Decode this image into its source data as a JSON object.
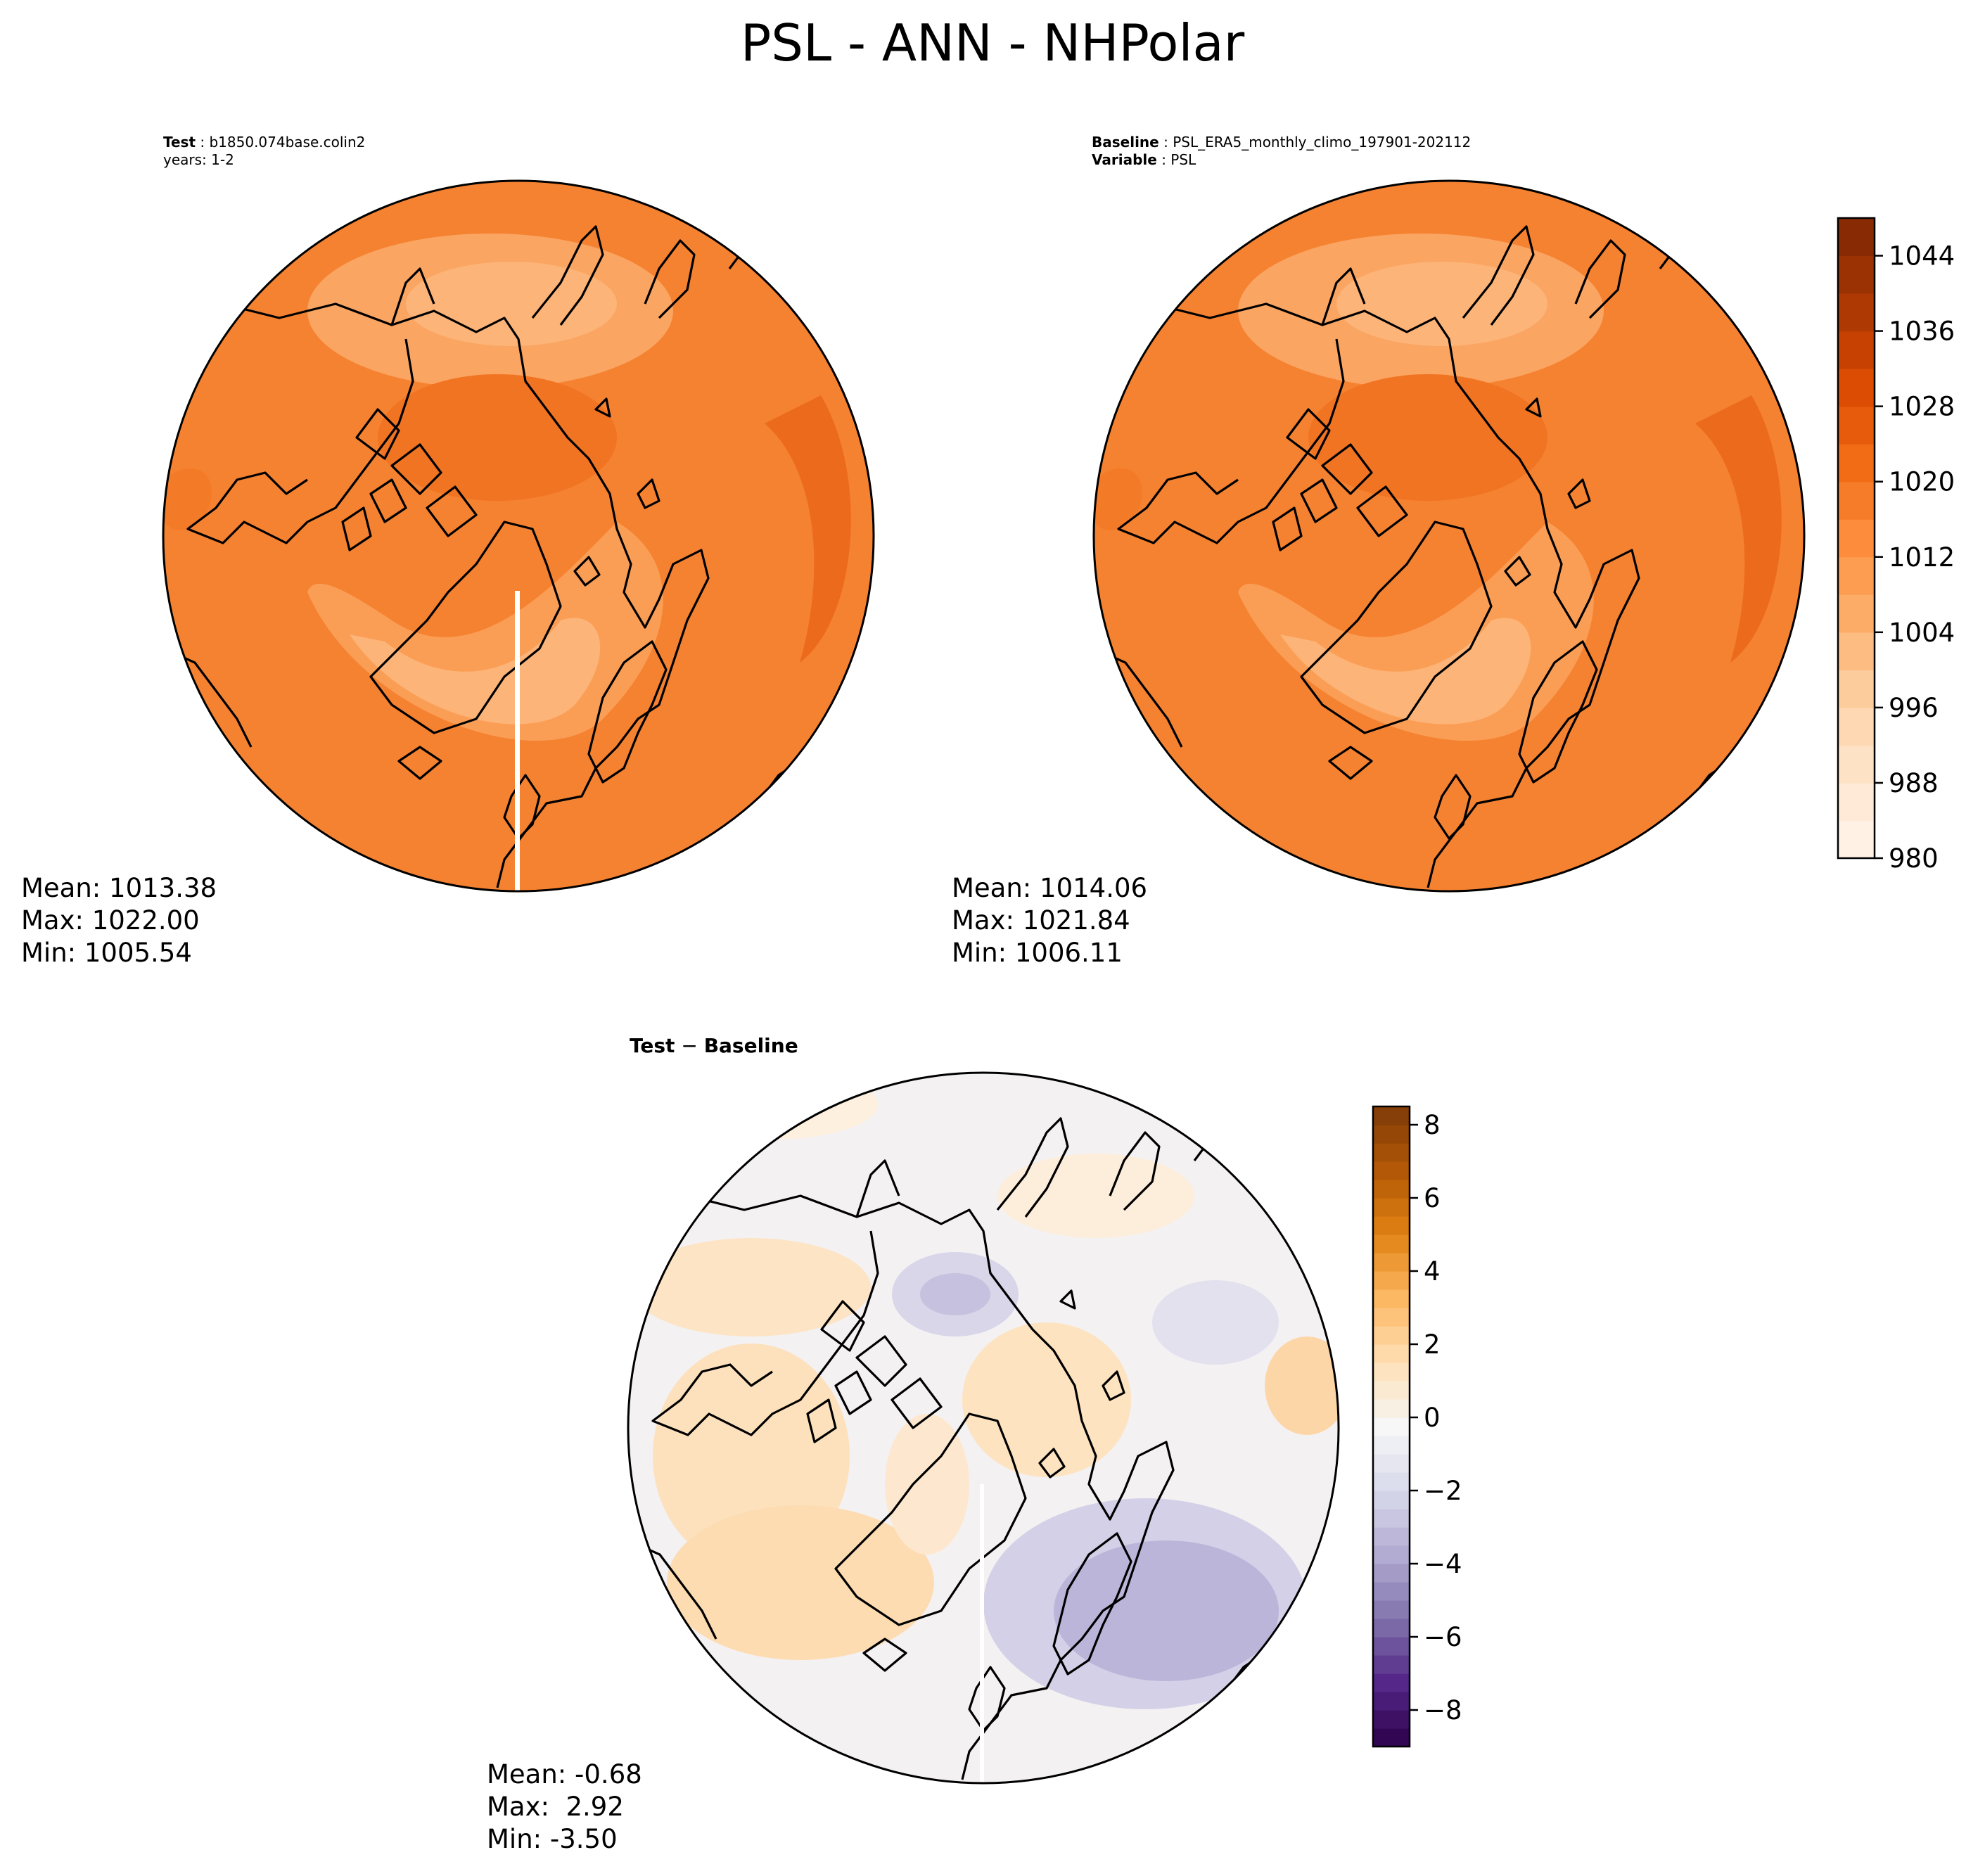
{
  "figure": {
    "title": "PSL - ANN - NHPolar"
  },
  "panels": {
    "test": {
      "label": "Test",
      "case": "b1850.074base.colin2",
      "years_line": "years: 1-2",
      "mean": "Mean: 1013.38",
      "max": "Max: 1022.00",
      "min": "Min: 1005.54"
    },
    "baseline": {
      "label": "Baseline",
      "case": "PSL_ERA5_monthly_climo_197901-202112",
      "var_label": "Variable",
      "var_value": "PSL",
      "mean": "Mean: 1014.06",
      "max": "Max: 1021.84",
      "min": "Min: 1006.11"
    },
    "diff": {
      "title_a": "Test",
      "title_op": " − ",
      "title_b": "Baseline",
      "mean": "Mean: -0.68",
      "max": "Max:  2.92",
      "min": "Min: -3.50"
    }
  },
  "chart_data": [
    {
      "type": "heatmap",
      "name": "Test",
      "projection": "north-polar-stereographic",
      "variable": "PSL",
      "season": "ANN",
      "stats": {
        "mean": 1013.38,
        "max": 1022.0,
        "min": 1005.54
      },
      "colormap": "Oranges",
      "levels_range": [
        980,
        1048
      ]
    },
    {
      "type": "heatmap",
      "name": "Baseline",
      "projection": "north-polar-stereographic",
      "variable": "PSL",
      "season": "ANN",
      "stats": {
        "mean": 1014.06,
        "max": 1021.84,
        "min": 1006.11
      },
      "colormap": "Oranges",
      "levels_range": [
        980,
        1048
      ],
      "colorbar": {
        "ticks": [
          980,
          988,
          996,
          1004,
          1012,
          1020,
          1028,
          1036,
          1044
        ],
        "tick_labels": [
          "980",
          "988",
          "996",
          "1004",
          "1012",
          "1020",
          "1028",
          "1036",
          "1044"
        ],
        "range": [
          980,
          1048
        ],
        "colors": [
          "#fff5eb",
          "#fee6ce",
          "#fdd0a2",
          "#fdae6b",
          "#fd8d3c",
          "#f16913",
          "#d94801",
          "#a63603",
          "#7f2704"
        ]
      }
    },
    {
      "type": "heatmap",
      "name": "Test - Baseline",
      "projection": "north-polar-stereographic",
      "variable": "PSL",
      "stats": {
        "mean": -0.68,
        "max": 2.92,
        "min": -3.5
      },
      "colormap": "PuOr_r",
      "colorbar": {
        "ticks": [
          -8,
          -6,
          -4,
          -2,
          0,
          2,
          4,
          6,
          8
        ],
        "tick_labels": [
          "−8",
          "−6",
          "−4",
          "−2",
          "0",
          "2",
          "4",
          "6",
          "8"
        ],
        "range": [
          -9,
          8.5
        ],
        "colors": [
          "#2d004b",
          "#542788",
          "#8073ac",
          "#b2abd2",
          "#d8daeb",
          "#f7f7f7",
          "#fee0b6",
          "#fdb863",
          "#e08214",
          "#b35806",
          "#7f3b08"
        ]
      }
    }
  ]
}
